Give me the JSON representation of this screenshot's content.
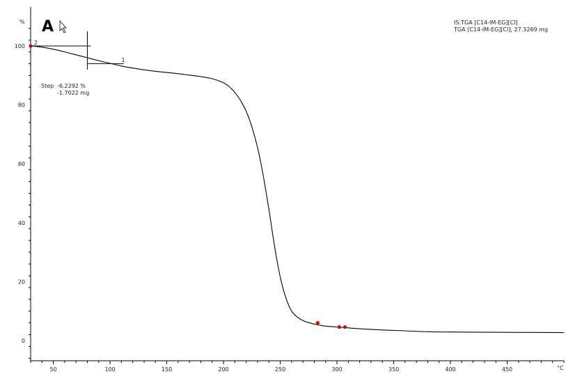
{
  "chart_data": {
    "type": "line",
    "panel_label": "A",
    "y_unit": "%",
    "x_unit": "°C",
    "xlim": [
      30,
      500
    ],
    "ylim": [
      0,
      100
    ],
    "x_ticks": [
      50,
      100,
      150,
      200,
      250,
      300,
      350,
      400,
      450
    ],
    "y_ticks": [
      0,
      20,
      40,
      60,
      80,
      100
    ],
    "legend_lines": [
      "IS:TGA [C14-IM-EG][Cl]",
      "TGA [C14-IM-EG][Cl], 27.3269 mg"
    ],
    "legend_position": "top-right",
    "grid": false,
    "step_annotation": {
      "label": "Step",
      "percent": "-6.2292 %",
      "mass": "-1.7022 mg"
    },
    "step_marker_labels": [
      "2",
      "1"
    ],
    "series": [
      {
        "color": "#000000",
        "x": [
          30,
          40,
          50,
          60,
          70,
          80,
          90,
          100,
          110,
          120,
          130,
          140,
          150,
          160,
          170,
          180,
          190,
          200,
          205,
          210,
          215,
          220,
          225,
          230,
          235,
          240,
          245,
          250,
          255,
          260,
          265,
          270,
          275,
          280,
          285,
          290,
          300,
          310,
          320,
          340,
          360,
          380,
          400,
          450,
          500
        ],
        "y": [
          100,
          99.6,
          98.9,
          98.0,
          97.0,
          96.0,
          95.0,
          94.1,
          93.2,
          92.5,
          91.9,
          91.4,
          91.0,
          90.6,
          90.1,
          89.6,
          88.9,
          87.5,
          86.2,
          84.2,
          81.5,
          77.8,
          72.5,
          65.5,
          56.0,
          44.5,
          32.0,
          21.5,
          14.5,
          10.0,
          8.0,
          6.8,
          6.1,
          5.6,
          5.2,
          4.9,
          4.6,
          4.3,
          4.0,
          3.6,
          3.3,
          3.0,
          2.9,
          2.8,
          2.7
        ]
      }
    ],
    "red_markers": [
      {
        "x": 30,
        "y": 100
      },
      {
        "x": 283,
        "y": 6
      },
      {
        "x": 302,
        "y": 4.6
      },
      {
        "x": 307,
        "y": 4.6
      }
    ],
    "step_lines": [
      {
        "x1": 30,
        "y1": 100,
        "x2": 83,
        "y2": 100
      },
      {
        "x1": 80,
        "y1": 94,
        "x2": 112,
        "y2": 94
      }
    ],
    "step_vertical": {
      "x": 80,
      "y1": 105,
      "y2": 92
    }
  }
}
